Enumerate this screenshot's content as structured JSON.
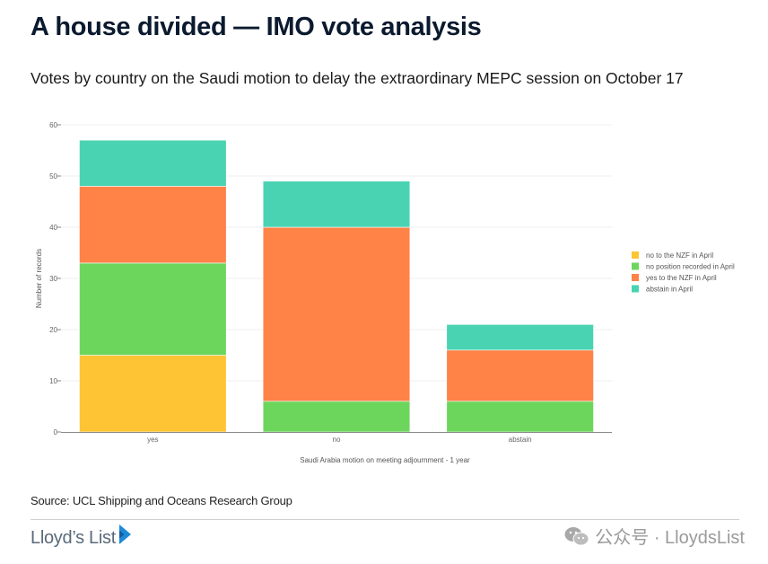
{
  "header": {
    "title": "A house divided — IMO vote analysis",
    "subtitle": "Votes by country on the Saudi motion to delay the extraordinary MEPC session on October 17"
  },
  "footer": {
    "source": "Source: UCL Shipping and Oceans Research Group",
    "logo_text": "Lloyd’s List",
    "watermark": "公众号 · LloydsList"
  },
  "chart_data": {
    "type": "bar",
    "stacked": true,
    "title": "",
    "xlabel": "Saudi Arabia motion on meeting adjournment - 1 year",
    "ylabel": "Number of records",
    "ylim": [
      0,
      60
    ],
    "yticks": [
      0,
      10,
      20,
      30,
      40,
      50,
      60
    ],
    "grid": true,
    "legend_position": "right",
    "categories": [
      "yes",
      "no",
      "abstain"
    ],
    "series": [
      {
        "name": "no to the NZF in April",
        "color": "#ffc434",
        "values": [
          15,
          0,
          0
        ]
      },
      {
        "name": "no position recorded in April",
        "color": "#6cd65c",
        "values": [
          18,
          6,
          6
        ]
      },
      {
        "name": "yes to the NZF in April",
        "color": "#ff8247",
        "values": [
          15,
          34,
          10
        ]
      },
      {
        "name": "abstain in April",
        "color": "#49d3b2",
        "values": [
          9,
          9,
          5
        ]
      }
    ]
  }
}
